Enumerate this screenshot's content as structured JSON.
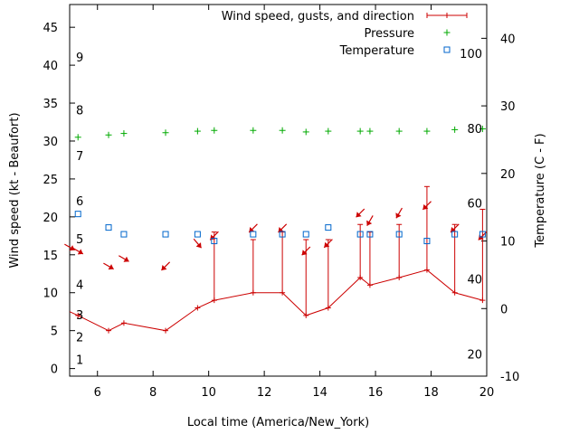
{
  "chart_data": {
    "type": "line",
    "xlabel": "Local time (America/New_York)",
    "ylabel": "Wind speed (kt - Beaufort)",
    "y2label": "Temperature (C - F)",
    "xlim": [
      5,
      20
    ],
    "ylim": [
      -1,
      48
    ],
    "y2lim": [
      -10,
      45
    ],
    "x_ticks": [
      "6",
      "8",
      "10",
      "12",
      "14",
      "16",
      "18",
      "20"
    ],
    "y_ticks": [
      "0",
      "5",
      "10",
      "15",
      "20",
      "25",
      "30",
      "35",
      "40",
      "45"
    ],
    "y2_ticks": [
      "-10",
      "0",
      "10",
      "20",
      "30",
      "40"
    ],
    "beaufort_labels": [
      {
        "label": "1",
        "y": 1.2
      },
      {
        "label": "2",
        "y": 4.2
      },
      {
        "label": "3",
        "y": 7.1
      },
      {
        "label": "4",
        "y": 11.1
      },
      {
        "label": "5",
        "y": 17.1
      },
      {
        "label": "6",
        "y": 22.1
      },
      {
        "label": "7",
        "y": 28.1
      },
      {
        "label": "8",
        "y": 34.1
      },
      {
        "label": "9",
        "y": 41.1
      }
    ],
    "fahrenheit_labels": [
      {
        "label": "20",
        "y2": -6.7
      },
      {
        "label": "40",
        "y2": 4.4
      },
      {
        "label": "60",
        "y2": 15.6
      },
      {
        "label": "80",
        "y2": 26.7
      },
      {
        "label": "100",
        "y2": 37.8
      }
    ],
    "legend": [
      {
        "label": "Wind speed, gusts, and direction",
        "color": "#cc0000"
      },
      {
        "label": "Pressure",
        "color": "#00aa00"
      },
      {
        "label": "Temperature",
        "color": "#0066cc"
      }
    ],
    "legend_position": "top-right",
    "series": [
      {
        "name": "Wind speed, gusts, and direction",
        "color": "#cc0000",
        "points": [
          {
            "x": 5.0,
            "y": 7.5,
            "gust": null,
            "dir": 300
          },
          {
            "x": 5.3,
            "y": 7.0,
            "gust": null,
            "dir": 300
          },
          {
            "x": 6.4,
            "y": 5.0,
            "gust": null,
            "dir": 300
          },
          {
            "x": 6.95,
            "y": 6.0,
            "gust": null,
            "dir": 300
          },
          {
            "x": 8.45,
            "y": 5.0,
            "gust": null,
            "dir": 45
          },
          {
            "x": 9.6,
            "y": 8.0,
            "gust": null,
            "dir": 320
          },
          {
            "x": 10.2,
            "y": 9.0,
            "gust": 18.0,
            "dir": 45
          },
          {
            "x": 11.6,
            "y": 10.0,
            "gust": 17.0,
            "dir": 45
          },
          {
            "x": 12.65,
            "y": 10.0,
            "gust": 18.0,
            "dir": 45
          },
          {
            "x": 13.5,
            "y": 7.0,
            "gust": 17.0,
            "dir": 45
          },
          {
            "x": 14.3,
            "y": 8.0,
            "gust": 17.0,
            "dir": 45
          },
          {
            "x": 15.45,
            "y": 12.0,
            "gust": 19.0,
            "dir": 45
          },
          {
            "x": 15.8,
            "y": 11.0,
            "gust": 18.0,
            "dir": 30
          },
          {
            "x": 16.85,
            "y": 12.0,
            "gust": 19.0,
            "dir": 30
          },
          {
            "x": 17.85,
            "y": 13.0,
            "gust": 24.0,
            "dir": 45
          },
          {
            "x": 18.85,
            "y": 10.0,
            "gust": 19.0,
            "dir": 45
          },
          {
            "x": 19.85,
            "y": 9.0,
            "gust": 21.0,
            "dir": 45
          }
        ]
      },
      {
        "name": "Pressure",
        "color": "#00aa00",
        "points": [
          {
            "x": 5.3,
            "y": 30.5
          },
          {
            "x": 6.4,
            "y": 30.8
          },
          {
            "x": 6.95,
            "y": 31.0
          },
          {
            "x": 8.45,
            "y": 31.1
          },
          {
            "x": 9.6,
            "y": 31.3
          },
          {
            "x": 10.2,
            "y": 31.4
          },
          {
            "x": 11.6,
            "y": 31.4
          },
          {
            "x": 12.65,
            "y": 31.4
          },
          {
            "x": 13.5,
            "y": 31.2
          },
          {
            "x": 14.3,
            "y": 31.3
          },
          {
            "x": 15.45,
            "y": 31.3
          },
          {
            "x": 15.8,
            "y": 31.3
          },
          {
            "x": 16.85,
            "y": 31.3
          },
          {
            "x": 17.85,
            "y": 31.3
          },
          {
            "x": 18.85,
            "y": 31.5
          },
          {
            "x": 19.85,
            "y": 31.6
          }
        ]
      },
      {
        "name": "Temperature",
        "color": "#0066cc",
        "axis": "y2",
        "points": [
          {
            "x": 5.3,
            "y": 14.0
          },
          {
            "x": 6.4,
            "y": 12.0
          },
          {
            "x": 6.95,
            "y": 11.0
          },
          {
            "x": 8.45,
            "y": 11.0
          },
          {
            "x": 9.6,
            "y": 11.0
          },
          {
            "x": 10.2,
            "y": 10.0
          },
          {
            "x": 11.6,
            "y": 11.0
          },
          {
            "x": 12.65,
            "y": 11.0
          },
          {
            "x": 13.5,
            "y": 11.0
          },
          {
            "x": 14.3,
            "y": 12.0
          },
          {
            "x": 15.45,
            "y": 11.0
          },
          {
            "x": 15.8,
            "y": 11.0
          },
          {
            "x": 16.85,
            "y": 11.0
          },
          {
            "x": 17.85,
            "y": 10.0
          },
          {
            "x": 18.85,
            "y": 11.0
          },
          {
            "x": 19.85,
            "y": 11.0
          }
        ]
      }
    ]
  }
}
